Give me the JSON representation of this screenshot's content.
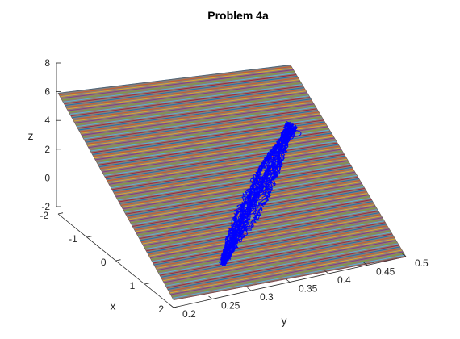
{
  "chart_data": {
    "type": "3d-surface-line",
    "title": "Problem 4a",
    "xlabel": "x",
    "ylabel": "y",
    "zlabel": "z",
    "xlim": [
      -2,
      2
    ],
    "ylim": [
      0.2,
      0.5
    ],
    "zlim": [
      -2,
      8
    ],
    "x_ticks": [
      "-2",
      "-1",
      "0",
      "1",
      "2"
    ],
    "y_ticks": [
      "0.2",
      "0.25",
      "0.3",
      "0.35",
      "0.4",
      "0.45",
      "0.5"
    ],
    "z_ticks": [
      "-2",
      "0",
      "2",
      "4",
      "6",
      "8"
    ],
    "surface": {
      "description": "striped multicolor plane",
      "corners": [
        {
          "x": -2,
          "y": 0.2,
          "z": 6
        },
        {
          "x": -2,
          "y": 0.5,
          "z": 4.5
        },
        {
          "x": 2,
          "y": 0.5,
          "z": -2
        },
        {
          "x": 2,
          "y": 0.2,
          "z": -1.5
        }
      ]
    },
    "trajectory": {
      "color": "#0000ff",
      "start": {
        "x": 1.0,
        "y": 0.3,
        "z": -1.8
      },
      "end": {
        "x": -0.6,
        "y": 0.45,
        "z": 3.3
      }
    },
    "grid": false
  }
}
